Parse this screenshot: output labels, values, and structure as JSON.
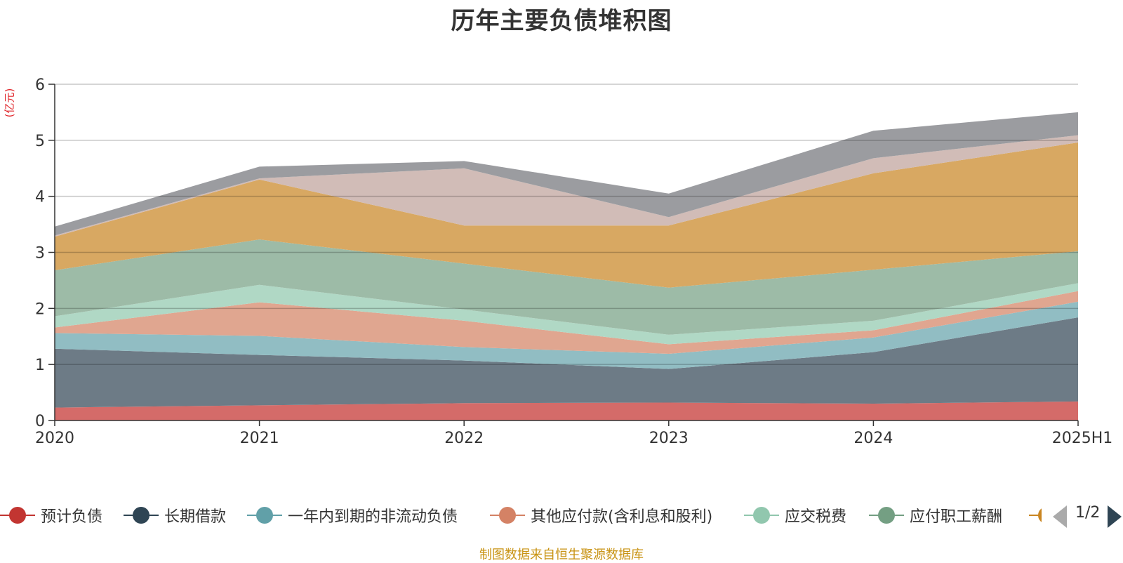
{
  "title": "历年主要负债堆积图",
  "footer": "制图数据来自恒生聚源数据库",
  "pager": {
    "text": "1/2"
  },
  "chart_data": {
    "type": "area",
    "stacked": true,
    "title": "历年主要负债堆积图",
    "y_unit_label": "(亿元)",
    "categories": [
      "2020",
      "2021",
      "2022",
      "2023",
      "2024",
      "2025H1"
    ],
    "ylim": [
      0,
      6
    ],
    "yticks": [
      "0",
      "1",
      "2",
      "3",
      "4",
      "5",
      "6"
    ],
    "grid": true,
    "legend_position": "bottom",
    "series": [
      {
        "name": "预计负债",
        "color": "#c23531",
        "fill": "#d46b69",
        "values": [
          0.23,
          0.27,
          0.31,
          0.32,
          0.3,
          0.34
        ]
      },
      {
        "name": "长期借款",
        "color": "#2f4554",
        "fill": "#6d7b86",
        "values": [
          1.05,
          0.9,
          0.76,
          0.6,
          0.92,
          1.5
        ]
      },
      {
        "name": "一年内到期的非流动负债",
        "color": "#61a0a8",
        "fill": "#91bdc3",
        "values": [
          0.28,
          0.34,
          0.24,
          0.27,
          0.26,
          0.28
        ]
      },
      {
        "name": "其他应付款(含利息和股利)",
        "color": "#d48265",
        "fill": "#e0a690",
        "values": [
          0.1,
          0.6,
          0.47,
          0.17,
          0.13,
          0.19
        ]
      },
      {
        "name": "应交税费",
        "color": "#91c7ae",
        "fill": "#b0d8c5",
        "values": [
          0.2,
          0.31,
          0.2,
          0.17,
          0.17,
          0.14
        ]
      },
      {
        "name": "应付职工薪酬",
        "color": "#749f83",
        "fill": "#9dbba7",
        "values": [
          0.82,
          0.81,
          0.82,
          0.84,
          0.91,
          0.57
        ]
      },
      {
        "name": "",
        "color": "#ca8622",
        "fill": "#d8a862",
        "values": [
          0.6,
          1.07,
          0.68,
          1.11,
          1.72,
          1.94
        ]
      },
      {
        "name": "",
        "color": "#bda29a",
        "fill": "#d1bcb7",
        "values": [
          0.02,
          0.02,
          1.02,
          0.15,
          0.27,
          0.13
        ]
      },
      {
        "name": "",
        "color": "#6e7074",
        "fill": "#9b9ca0",
        "values": [
          0.16,
          0.21,
          0.13,
          0.42,
          0.49,
          0.41
        ]
      }
    ]
  }
}
